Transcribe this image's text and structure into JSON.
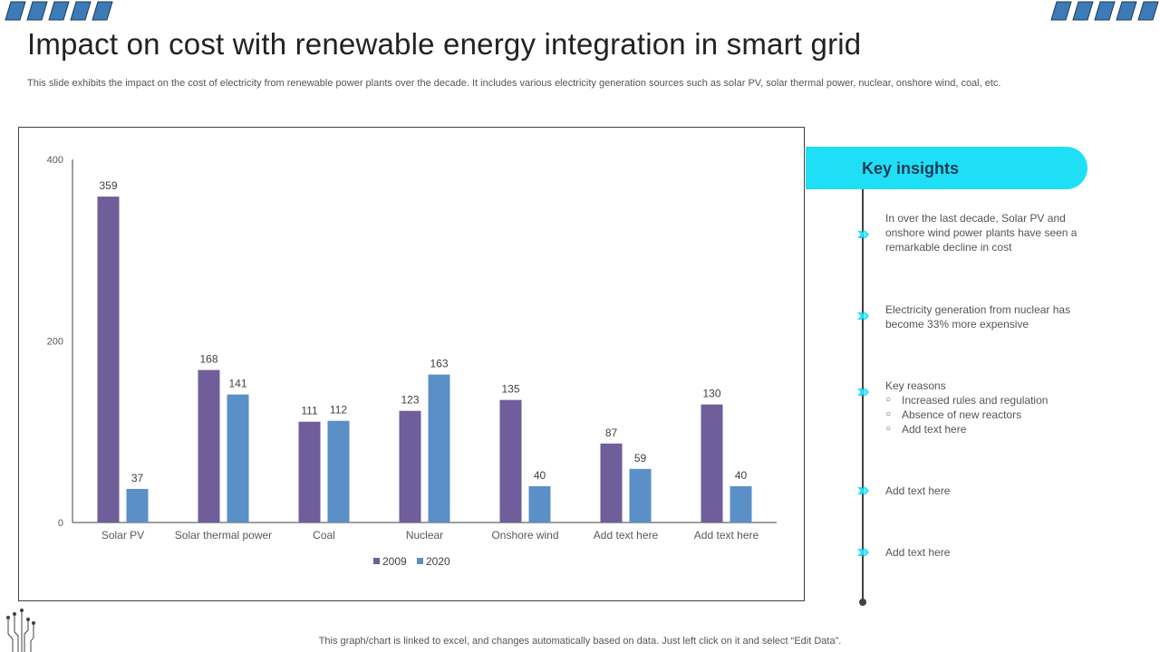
{
  "header": {
    "title": "Impact on cost with renewable energy integration in smart grid",
    "subtitle": "This slide exhibits the impact on the cost of electricity from renewable power plants over the decade. It includes various electricity generation sources such as solar PV, solar thermal power, nuclear, onshore wind, coal, etc."
  },
  "colors": {
    "series_2009": "#6f5e99",
    "series_2020": "#5b8fc8",
    "accent": "#1fdff7",
    "deco_blue": "#3d7ab8"
  },
  "chart_data": {
    "type": "bar",
    "title": "",
    "xlabel": "",
    "ylabel": "",
    "ylim": [
      0,
      400
    ],
    "yticks": [
      0,
      200,
      400
    ],
    "categories": [
      "Solar PV",
      "Solar thermal power",
      "Coal",
      "Nuclear",
      "Onshore wind",
      "Add text here",
      "Add text here"
    ],
    "series": [
      {
        "name": "2009",
        "values": [
          359,
          168,
          111,
          123,
          135,
          87,
          130
        ]
      },
      {
        "name": "2020",
        "values": [
          37,
          141,
          112,
          163,
          40,
          59,
          40
        ]
      }
    ],
    "legend": "bottom"
  },
  "insights": {
    "title": "Key insights",
    "item1": "In over the last decade, Solar PV and onshore wind power plants have seen a remarkable decline in cost",
    "item2": "Electricity generation from nuclear has become 33% more expensive",
    "item3_heading": "Key reasons",
    "item3_bullets": [
      "Increased rules and regulation",
      "Absence of new reactors",
      "Add text here"
    ],
    "item4": "Add text here",
    "item5": "Add text here"
  },
  "footer": {
    "note": "This graph/chart is linked to excel, and changes automatically based on data. Just left click on it and select “Edit Data”."
  }
}
